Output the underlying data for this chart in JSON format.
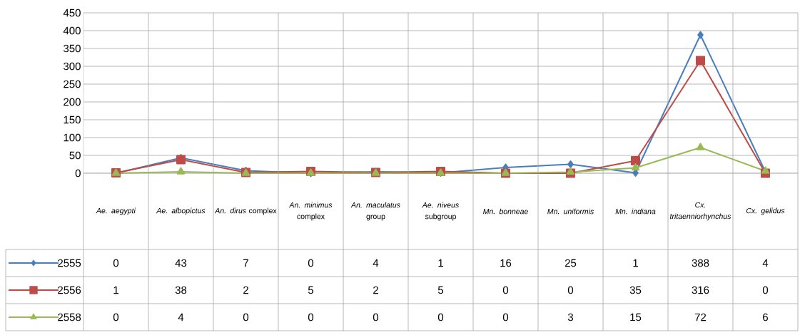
{
  "chart_data": {
    "type": "line",
    "categories": [
      "*Ae. aegypti*",
      "*Ae. albopictus*",
      "*An. dirus* complex",
      "*An. minimus* complex",
      "*An. maculatus* group",
      "*Ae. niveus* subgroup",
      "*Mn. bonneae*",
      "*Mn. uniformis*",
      "*Mn. indiana*",
      "*Cx. tritaenniorhynchus*",
      "*Cx. gelidus*"
    ],
    "series": [
      {
        "name": "2555",
        "color": "#4a7ebb",
        "marker": "diamond",
        "values": [
          0,
          43,
          7,
          0,
          4,
          1,
          16,
          25,
          1,
          388,
          4
        ]
      },
      {
        "name": "2556",
        "color": "#be4b48",
        "marker": "square",
        "values": [
          1,
          38,
          2,
          5,
          2,
          5,
          0,
          0,
          35,
          316,
          0
        ]
      },
      {
        "name": "2558",
        "color": "#98b954",
        "marker": "triangle",
        "values": [
          0,
          4,
          0,
          0,
          0,
          0,
          0,
          3,
          15,
          72,
          6
        ]
      }
    ],
    "ylim": [
      0,
      450
    ],
    "yticks": [
      0,
      50,
      100,
      150,
      200,
      250,
      300,
      350,
      400,
      450
    ],
    "grid": true,
    "legend": "bottom",
    "data_labels": true
  }
}
